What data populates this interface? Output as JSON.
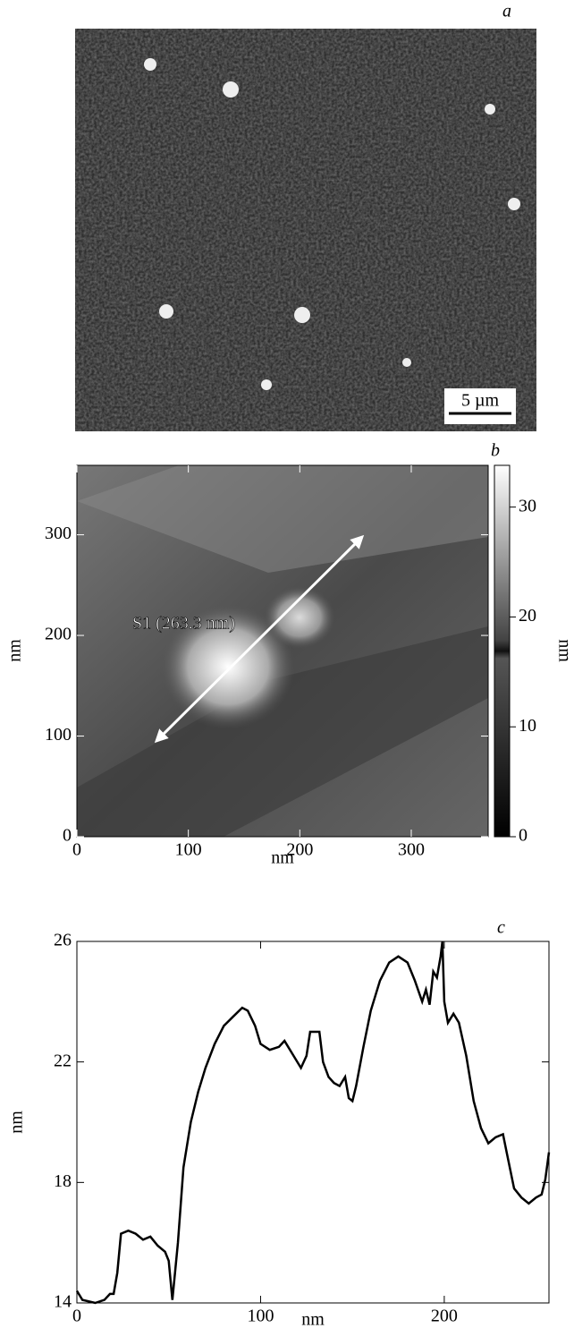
{
  "chart_data": [
    {
      "type": "image",
      "panel_label": "a",
      "scale_bar": "5 µm"
    },
    {
      "type": "image",
      "panel_label": "b",
      "x_label": "nm",
      "y_label": "nm",
      "xlim": [
        0,
        369
      ],
      "ylim": [
        0,
        369
      ],
      "xticks": [
        0,
        100,
        200,
        300
      ],
      "yticks": [
        0,
        100,
        200,
        300
      ],
      "colorbar_label": "nm",
      "clim": [
        0,
        33.8
      ],
      "cticks": [
        0,
        10,
        20,
        30
      ],
      "annotation": "S1 (263.3 nm)"
    },
    {
      "type": "line",
      "panel_label": "c",
      "x_label": "nm",
      "y_label": "nm",
      "xlim": [
        0,
        257
      ],
      "ylim": [
        14,
        26
      ],
      "xticks": [
        0,
        100,
        200
      ],
      "yticks": [
        14,
        18,
        22,
        26
      ],
      "color": "#000000",
      "x": [
        0,
        3,
        10,
        15,
        18,
        20,
        22,
        24,
        28,
        32,
        36,
        40,
        44,
        48,
        50,
        52,
        55,
        58,
        62,
        66,
        70,
        75,
        80,
        85,
        90,
        93,
        97,
        100,
        105,
        110,
        113,
        118,
        122,
        125,
        127,
        132,
        134,
        137,
        140,
        143,
        146,
        148,
        150,
        152,
        156,
        160,
        165,
        170,
        175,
        180,
        184,
        188,
        190,
        192,
        194,
        196,
        198,
        199,
        200,
        202,
        205,
        208,
        212,
        216,
        220,
        224,
        228,
        232,
        234,
        238,
        242,
        246,
        250,
        253,
        255,
        257
      ],
      "values": [
        14.4,
        14.1,
        14.0,
        14.1,
        14.3,
        14.3,
        15.0,
        16.3,
        16.4,
        16.3,
        16.1,
        16.2,
        15.9,
        15.7,
        15.4,
        14.1,
        16.0,
        18.5,
        20.0,
        21.0,
        21.8,
        22.6,
        23.2,
        23.5,
        23.8,
        23.7,
        23.2,
        22.6,
        22.4,
        22.5,
        22.7,
        22.2,
        21.8,
        22.2,
        23.0,
        23.0,
        22.0,
        21.5,
        21.3,
        21.2,
        21.5,
        20.8,
        20.7,
        21.2,
        22.5,
        23.7,
        24.7,
        25.3,
        25.5,
        25.3,
        24.7,
        24.0,
        24.4,
        23.9,
        25.0,
        24.8,
        25.5,
        26.0,
        24.0,
        23.3,
        23.6,
        23.3,
        22.2,
        20.7,
        19.8,
        19.3,
        19.5,
        19.6,
        19.0,
        17.8,
        17.5,
        17.3,
        17.5,
        17.6,
        18.1,
        19.0
      ]
    }
  ]
}
